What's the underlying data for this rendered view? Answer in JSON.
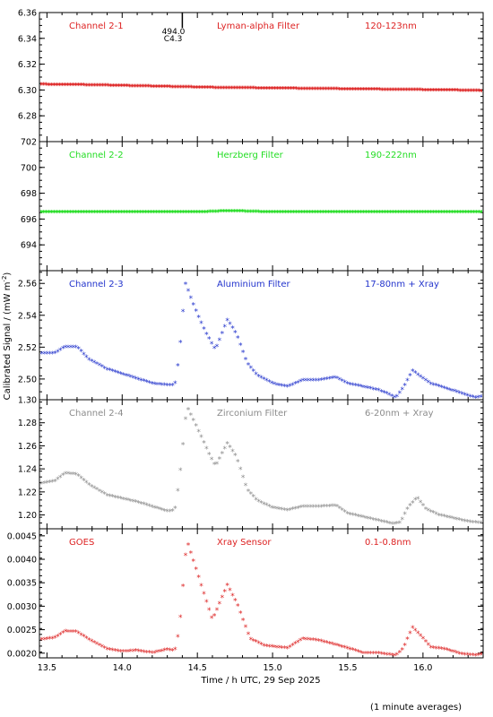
{
  "chart_data": {
    "type": "scatter",
    "xlabel": "Time / h UTC, 29 Sep 2025",
    "ylabel": "Calibrated Signal / (mW m",
    "ylabel_sup": "-2",
    "ylabel_close": ")",
    "footnote": "(1 minute averages)",
    "xlim": [
      13.45,
      16.4
    ],
    "xticks": [
      "13.5",
      "14.0",
      "14.5",
      "15.0",
      "15.5",
      "16.0"
    ],
    "marker_note": {
      "line1": "494.0",
      "line2": "C4.3",
      "x": 14.4
    },
    "panels": [
      {
        "channel": "Channel 2-1",
        "filter": "Lyman-alpha Filter",
        "band": "120-123nm",
        "color": "#dd2222",
        "ylim": [
          6.26,
          6.36
        ],
        "yticks": [
          "6.28",
          "6.30",
          "6.32",
          "6.34",
          "6.36"
        ],
        "series": [
          [
            13.45,
            6.304
          ],
          [
            13.8,
            6.3035
          ],
          [
            14.2,
            6.3025
          ],
          [
            14.6,
            6.3015
          ],
          [
            15.0,
            6.301
          ],
          [
            15.4,
            6.3005
          ],
          [
            15.8,
            6.3
          ],
          [
            16.2,
            6.2995
          ],
          [
            16.4,
            6.299
          ]
        ]
      },
      {
        "channel": "Channel 2-2",
        "filter": "Herzberg Filter",
        "band": "190-222nm",
        "color": "#22dd22",
        "ylim": [
          692,
          702
        ],
        "yticks": [
          "694",
          "696",
          "698",
          "700",
          "702"
        ],
        "series": [
          [
            13.45,
            696.5
          ],
          [
            14.0,
            696.5
          ],
          [
            14.5,
            696.5
          ],
          [
            14.72,
            696.6
          ],
          [
            15.0,
            696.5
          ],
          [
            15.5,
            696.5
          ],
          [
            16.0,
            696.5
          ],
          [
            16.4,
            696.5
          ]
        ]
      },
      {
        "channel": "Channel 2-3",
        "filter": "Aluminium Filter",
        "band": "17-80nm + Xray",
        "color": "#2233cc",
        "ylim": [
          2.487,
          2.568
        ],
        "yticks": [
          "2.50",
          "2.52",
          "2.54",
          "2.56"
        ],
        "series": [
          [
            13.45,
            2.516
          ],
          [
            13.55,
            2.516
          ],
          [
            13.62,
            2.52
          ],
          [
            13.7,
            2.52
          ],
          [
            13.78,
            2.512
          ],
          [
            13.9,
            2.506
          ],
          [
            14.0,
            2.503
          ],
          [
            14.1,
            2.5
          ],
          [
            14.2,
            2.497
          ],
          [
            14.3,
            2.496
          ],
          [
            14.35,
            2.496
          ],
          [
            14.38,
            2.515
          ],
          [
            14.42,
            2.56
          ],
          [
            14.48,
            2.545
          ],
          [
            14.55,
            2.53
          ],
          [
            14.62,
            2.518
          ],
          [
            14.7,
            2.537
          ],
          [
            14.76,
            2.528
          ],
          [
            14.83,
            2.51
          ],
          [
            14.9,
            2.502
          ],
          [
            15.0,
            2.497
          ],
          [
            15.1,
            2.495
          ],
          [
            15.2,
            2.499
          ],
          [
            15.3,
            2.499
          ],
          [
            15.42,
            2.501
          ],
          [
            15.5,
            2.497
          ],
          [
            15.6,
            2.495
          ],
          [
            15.7,
            2.493
          ],
          [
            15.78,
            2.49
          ],
          [
            15.82,
            2.488
          ],
          [
            15.88,
            2.496
          ],
          [
            15.93,
            2.505
          ],
          [
            15.99,
            2.501
          ],
          [
            16.05,
            2.497
          ],
          [
            16.15,
            2.494
          ],
          [
            16.25,
            2.491
          ],
          [
            16.35,
            2.488
          ],
          [
            16.4,
            2.489
          ]
        ]
      },
      {
        "channel": "Channel 2-4",
        "filter": "Zirconium Filter",
        "band": "6-20nm + Xray",
        "color": "#8c8c8c",
        "ylim": [
          1.188,
          1.3
        ],
        "yticks": [
          "1.20",
          "1.22",
          "1.24",
          "1.26",
          "1.28",
          "1.30"
        ],
        "series": [
          [
            13.45,
            1.227
          ],
          [
            13.55,
            1.229
          ],
          [
            13.62,
            1.236
          ],
          [
            13.7,
            1.235
          ],
          [
            13.78,
            1.226
          ],
          [
            13.9,
            1.217
          ],
          [
            14.0,
            1.214
          ],
          [
            14.1,
            1.211
          ],
          [
            14.2,
            1.207
          ],
          [
            14.3,
            1.203
          ],
          [
            14.35,
            1.204
          ],
          [
            14.38,
            1.23
          ],
          [
            14.43,
            1.294
          ],
          [
            14.5,
            1.275
          ],
          [
            14.58,
            1.252
          ],
          [
            14.62,
            1.242
          ],
          [
            14.7,
            1.262
          ],
          [
            14.76,
            1.25
          ],
          [
            14.83,
            1.222
          ],
          [
            14.9,
            1.212
          ],
          [
            15.0,
            1.206
          ],
          [
            15.1,
            1.204
          ],
          [
            15.2,
            1.207
          ],
          [
            15.3,
            1.207
          ],
          [
            15.42,
            1.208
          ],
          [
            15.5,
            1.201
          ],
          [
            15.6,
            1.198
          ],
          [
            15.7,
            1.195
          ],
          [
            15.8,
            1.192
          ],
          [
            15.85,
            1.193
          ],
          [
            15.9,
            1.206
          ],
          [
            15.96,
            1.215
          ],
          [
            16.02,
            1.205
          ],
          [
            16.1,
            1.2
          ],
          [
            16.2,
            1.197
          ],
          [
            16.3,
            1.194
          ],
          [
            16.38,
            1.193
          ],
          [
            16.4,
            1.193
          ]
        ]
      },
      {
        "channel": "GOES",
        "filter": "Xray Sensor",
        "band": "0.1-0.8nm",
        "color": "#dd2222",
        "ylim": [
          0.0019,
          0.00465
        ],
        "yticks": [
          "0.0020",
          "0.0025",
          "0.0030",
          "0.0035",
          "0.0040",
          "0.0045"
        ],
        "series": [
          [
            13.45,
            0.00228
          ],
          [
            13.55,
            0.00232
          ],
          [
            13.62,
            0.00246
          ],
          [
            13.7,
            0.00245
          ],
          [
            13.78,
            0.00228
          ],
          [
            13.9,
            0.00208
          ],
          [
            14.0,
            0.00203
          ],
          [
            14.1,
            0.00205
          ],
          [
            14.2,
            0.002
          ],
          [
            14.3,
            0.00207
          ],
          [
            14.35,
            0.00205
          ],
          [
            14.38,
            0.0025
          ],
          [
            14.43,
            0.0044
          ],
          [
            14.5,
            0.0037
          ],
          [
            14.6,
            0.0027
          ],
          [
            14.7,
            0.00345
          ],
          [
            14.77,
            0.003
          ],
          [
            14.85,
            0.0023
          ],
          [
            14.95,
            0.00215
          ],
          [
            15.1,
            0.0021
          ],
          [
            15.2,
            0.0023
          ],
          [
            15.3,
            0.00227
          ],
          [
            15.42,
            0.00217
          ],
          [
            15.5,
            0.0021
          ],
          [
            15.6,
            0.002
          ],
          [
            15.7,
            0.002
          ],
          [
            15.82,
            0.00194
          ],
          [
            15.87,
            0.0021
          ],
          [
            15.93,
            0.00254
          ],
          [
            15.99,
            0.00235
          ],
          [
            16.05,
            0.00212
          ],
          [
            16.15,
            0.00208
          ],
          [
            16.25,
            0.00198
          ],
          [
            16.35,
            0.00195
          ],
          [
            16.4,
            0.00198
          ]
        ]
      }
    ]
  }
}
